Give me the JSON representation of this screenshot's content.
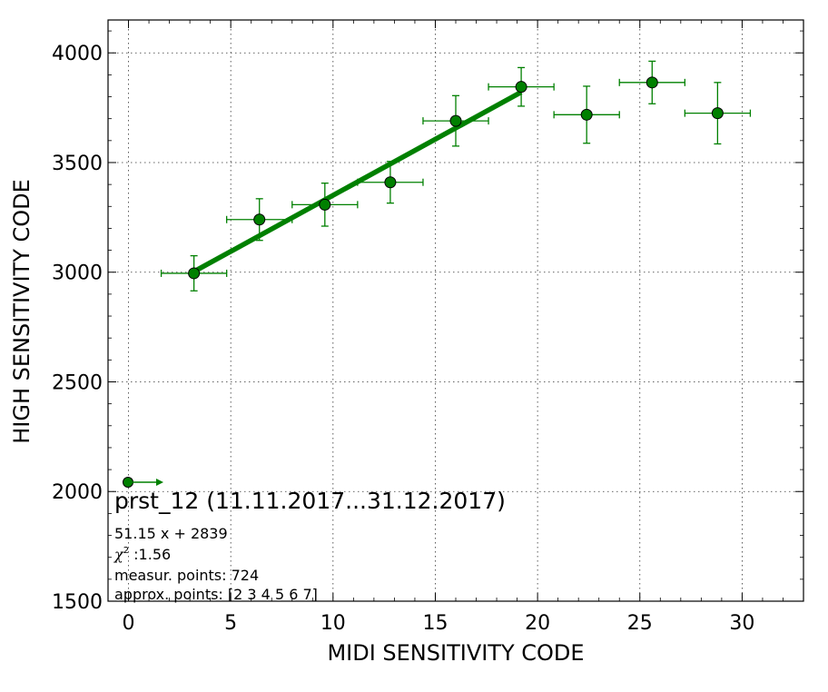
{
  "chart_data": {
    "type": "scatter",
    "xlabel": "MIDI SENSITIVITY CODE",
    "ylabel": "HIGH SENSITIVITY CODE",
    "xlim": [
      -1,
      33
    ],
    "ylim": [
      1500,
      4150
    ],
    "x_ticks": [
      0,
      5,
      10,
      15,
      20,
      25,
      30
    ],
    "y_ticks": [
      1500,
      2000,
      2500,
      3000,
      3500,
      4000
    ],
    "grid": true,
    "color": "#008000",
    "points": [
      {
        "x": 3.2,
        "y": 2995,
        "xerr": 1.6,
        "yerr": 80
      },
      {
        "x": 6.4,
        "y": 3240,
        "xerr": 1.6,
        "yerr": 95
      },
      {
        "x": 9.6,
        "y": 3308,
        "xerr": 1.6,
        "yerr": 98
      },
      {
        "x": 12.8,
        "y": 3410,
        "xerr": 1.6,
        "yerr": 95
      },
      {
        "x": 16.0,
        "y": 3690,
        "xerr": 1.6,
        "yerr": 115
      },
      {
        "x": 19.2,
        "y": 3845,
        "xerr": 1.6,
        "yerr": 88
      },
      {
        "x": 22.4,
        "y": 3718,
        "xerr": 1.6,
        "yerr": 130
      },
      {
        "x": 25.6,
        "y": 3865,
        "xerr": 1.6,
        "yerr": 97
      },
      {
        "x": 28.8,
        "y": 3725,
        "xerr": 1.6,
        "yerr": 140
      }
    ],
    "fit": {
      "slope": 51.15,
      "intercept": 2839,
      "x_range": [
        3.2,
        19.2
      ]
    },
    "legend": {
      "placement": "bottom-left",
      "title": "prst_12 (11.11.2017...31.12.2017)",
      "equation": "51.15 x + 2839",
      "chi_symbol": "χ",
      "chi_superscript": "2",
      "chi_value": " :1.56",
      "measur_points": "measur. points: 724",
      "approx_points": "approx. points: [2 3 4 5 6 7]"
    }
  }
}
